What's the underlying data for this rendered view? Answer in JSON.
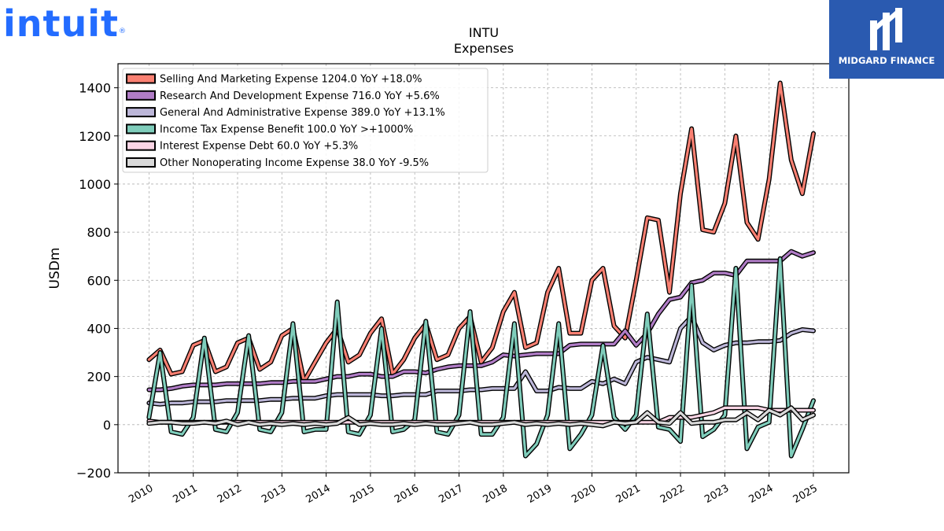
{
  "logos": {
    "left_text": "intuit",
    "left_mark": "®",
    "right_text": "MIDGARD FINANCE",
    "right_icon": "midgard-emblem-icon"
  },
  "chart_data": {
    "type": "line",
    "title": "INTU",
    "subtitle": "Expenses",
    "xlabel": "",
    "ylabel": "USDm",
    "xlim": [
      2009.3,
      2025.8
    ],
    "ylim": [
      -200,
      1500
    ],
    "yticks": [
      -200,
      0,
      200,
      400,
      600,
      800,
      1000,
      1200,
      1400
    ],
    "ytick_labels": [
      "−200",
      "0",
      "200",
      "400",
      "600",
      "800",
      "1000",
      "1200",
      "1400"
    ],
    "xticks": [
      2010,
      2011,
      2012,
      2013,
      2014,
      2015,
      2016,
      2017,
      2018,
      2019,
      2020,
      2021,
      2022,
      2023,
      2024,
      2025
    ],
    "xtick_labels": [
      "2010",
      "2011",
      "2012",
      "2013",
      "2014",
      "2015",
      "2016",
      "2017",
      "2018",
      "2019",
      "2020",
      "2021",
      "2022",
      "2023",
      "2024",
      "2025"
    ],
    "grid": true,
    "legend_position": "top-left",
    "x": [
      2010.0,
      2010.25,
      2010.5,
      2010.75,
      2011.0,
      2011.25,
      2011.5,
      2011.75,
      2012.0,
      2012.25,
      2012.5,
      2012.75,
      2013.0,
      2013.25,
      2013.5,
      2013.75,
      2014.0,
      2014.25,
      2014.5,
      2014.75,
      2015.0,
      2015.25,
      2015.5,
      2015.75,
      2016.0,
      2016.25,
      2016.5,
      2016.75,
      2017.0,
      2017.25,
      2017.5,
      2017.75,
      2018.0,
      2018.25,
      2018.5,
      2018.75,
      2019.0,
      2019.25,
      2019.5,
      2019.75,
      2020.0,
      2020.25,
      2020.5,
      2020.75,
      2021.0,
      2021.25,
      2021.5,
      2021.75,
      2022.0,
      2022.25,
      2022.5,
      2022.75,
      2023.0,
      2023.25,
      2023.5,
      2023.75,
      2024.0,
      2024.25,
      2024.5,
      2024.75,
      2025.0
    ],
    "series": [
      {
        "name": "Selling And Marketing Expense",
        "legend_label": "Selling And Marketing Expense  1204.0 YoY +18.0%",
        "color": "#fa8072",
        "values": [
          270,
          310,
          210,
          220,
          330,
          350,
          220,
          240,
          340,
          360,
          230,
          260,
          370,
          400,
          180,
          260,
          340,
          400,
          260,
          290,
          380,
          440,
          210,
          270,
          360,
          420,
          270,
          290,
          400,
          450,
          260,
          320,
          470,
          550,
          320,
          340,
          550,
          650,
          380,
          380,
          600,
          650,
          410,
          360,
          600,
          860,
          850,
          550,
          960,
          1230,
          810,
          800,
          920,
          1200,
          840,
          770,
          1020,
          1420,
          1100,
          960,
          1210
        ]
      },
      {
        "name": "Research And Development Expense",
        "legend_label": "Research And Development Expense  716.0 YoY +5.6%",
        "color": "#b07cc6",
        "values": [
          145,
          145,
          150,
          160,
          165,
          165,
          165,
          170,
          170,
          170,
          170,
          175,
          175,
          180,
          180,
          180,
          190,
          200,
          200,
          210,
          210,
          200,
          200,
          220,
          220,
          215,
          230,
          240,
          245,
          245,
          245,
          260,
          290,
          285,
          290,
          295,
          295,
          295,
          330,
          335,
          335,
          335,
          335,
          390,
          330,
          380,
          460,
          520,
          530,
          590,
          600,
          630,
          630,
          620,
          680,
          680,
          680,
          680,
          720,
          700,
          715
        ]
      },
      {
        "name": "General And Administrative Expense",
        "legend_label": "General And Administrative Expense  389.0 YoY +13.1%",
        "color": "#bcb6d8",
        "values": [
          90,
          85,
          90,
          90,
          95,
          95,
          95,
          100,
          100,
          100,
          100,
          105,
          105,
          110,
          110,
          110,
          120,
          125,
          125,
          125,
          125,
          120,
          120,
          125,
          125,
          125,
          140,
          140,
          140,
          145,
          145,
          150,
          150,
          150,
          220,
          140,
          140,
          155,
          150,
          150,
          180,
          170,
          190,
          170,
          260,
          280,
          270,
          260,
          400,
          450,
          340,
          310,
          330,
          340,
          340,
          345,
          345,
          350,
          380,
          395,
          390
        ]
      },
      {
        "name": "Income Tax Expense Benefit",
        "legend_label": "Income Tax Expense Benefit  100.0 YoY >+1000%",
        "color": "#7fcdbb",
        "values": [
          30,
          300,
          -30,
          -40,
          30,
          360,
          -20,
          -30,
          50,
          370,
          -20,
          -30,
          50,
          420,
          -30,
          -20,
          -20,
          510,
          -30,
          -40,
          40,
          400,
          -30,
          -20,
          20,
          430,
          -30,
          -40,
          40,
          470,
          -40,
          -40,
          30,
          420,
          -130,
          -80,
          40,
          420,
          -100,
          -40,
          40,
          330,
          30,
          -20,
          40,
          460,
          -10,
          -20,
          -70,
          580,
          -50,
          -20,
          40,
          650,
          -100,
          -10,
          10,
          690,
          -130,
          -20,
          100
        ]
      },
      {
        "name": "Interest Expense Debt",
        "legend_label": "Interest Expense Debt  60.0 YoY +5.3%",
        "color": "#fbd5e5",
        "values": [
          15,
          10,
          10,
          10,
          10,
          10,
          10,
          10,
          10,
          10,
          10,
          10,
          10,
          10,
          10,
          10,
          10,
          10,
          10,
          10,
          10,
          10,
          10,
          10,
          10,
          10,
          10,
          10,
          10,
          10,
          10,
          10,
          10,
          10,
          10,
          10,
          10,
          10,
          10,
          10,
          10,
          10,
          10,
          10,
          10,
          10,
          10,
          30,
          30,
          30,
          40,
          50,
          70,
          70,
          70,
          70,
          60,
          60,
          60,
          60,
          60
        ]
      },
      {
        "name": "Other Nonoperating Income Expense",
        "legend_label": "Other Nonoperating Income Expense  38.0 YoY -9.5%",
        "color": "#d9d9d9",
        "values": [
          5,
          10,
          10,
          5,
          5,
          10,
          5,
          15,
          0,
          10,
          0,
          5,
          0,
          5,
          0,
          5,
          0,
          5,
          30,
          0,
          5,
          0,
          0,
          5,
          0,
          5,
          0,
          0,
          5,
          10,
          0,
          0,
          5,
          10,
          0,
          5,
          0,
          5,
          0,
          5,
          0,
          -5,
          10,
          5,
          10,
          50,
          10,
          5,
          50,
          5,
          10,
          10,
          20,
          20,
          50,
          20,
          60,
          40,
          70,
          20,
          40
        ]
      }
    ]
  }
}
